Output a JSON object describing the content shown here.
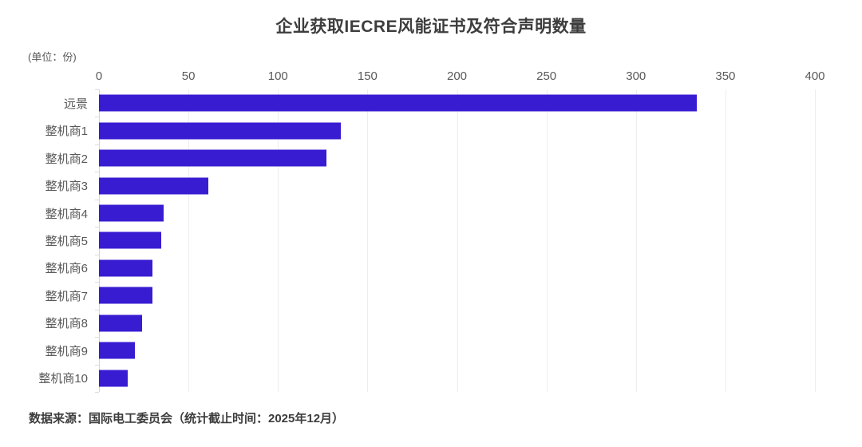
{
  "title": "企业获取IECRE风能证书及符合声明数量",
  "unit_label": "(单位：份)",
  "footer": "数据来源：国际电工委员会（统计截止时间：2025年12月）",
  "colors": {
    "bar": "#381cd2",
    "title_text": "#3d3d3d",
    "axis_text": "#595959",
    "gridline": "#ededed",
    "axis_line": "#d4d4d4",
    "background": "#ffffff"
  },
  "chart_data": {
    "type": "bar",
    "orientation": "horizontal",
    "title": "企业获取IECRE风能证书及符合声明数量",
    "unit": "份",
    "categories": [
      "远景",
      "整机商1",
      "整机商2",
      "整机商3",
      "整机商4",
      "整机商5",
      "整机商6",
      "整机商7",
      "整机商8",
      "整机商9",
      "整机商10"
    ],
    "values": [
      334,
      135,
      127,
      61,
      36,
      35,
      30,
      30,
      24,
      20,
      16
    ],
    "xlabel": "",
    "ylabel": "",
    "xlim": [
      0,
      400
    ],
    "xticks": [
      0,
      50,
      100,
      150,
      200,
      250,
      300,
      350,
      400
    ],
    "grid": true,
    "legend": "none",
    "source_note": "数据来源：国际电工委员会（统计截止时间：2025年12月）"
  }
}
